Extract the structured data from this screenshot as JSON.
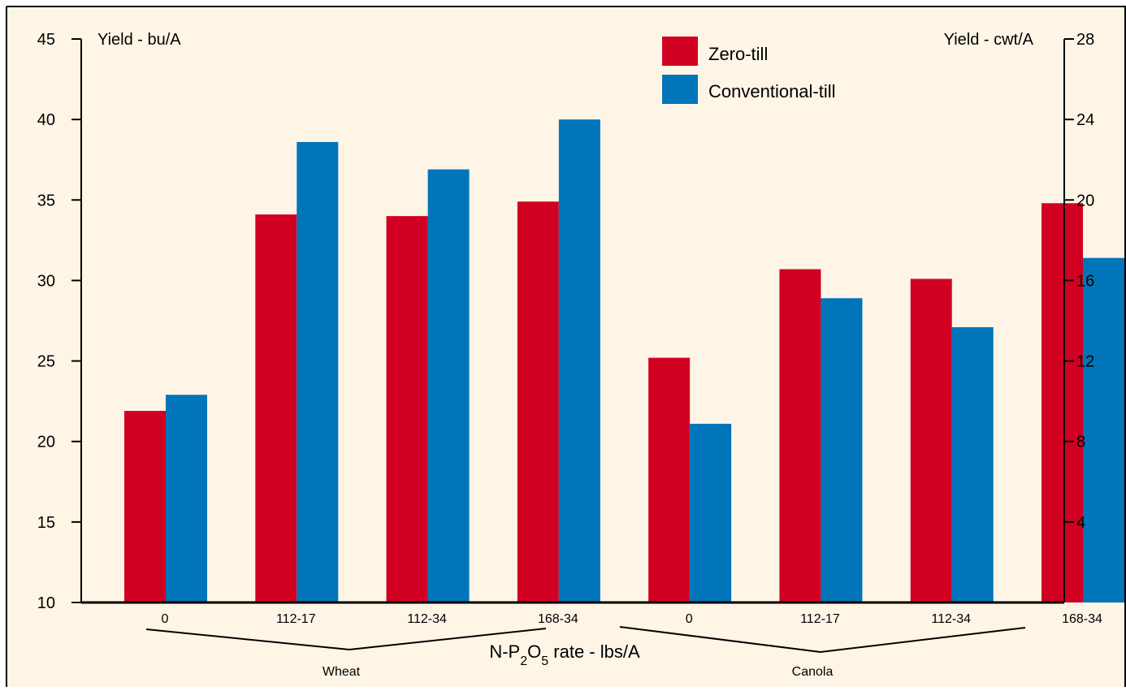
{
  "chart_data": {
    "type": "bar",
    "left_axis_label": "Yield - bu/A",
    "right_axis_label": "Yield - cwt/A",
    "xlabel_parts": [
      "N-P",
      "2",
      "O",
      "5",
      " rate - lbs/A"
    ],
    "ylim": [
      10,
      45
    ],
    "y_ticks": [
      10,
      15,
      20,
      25,
      30,
      35,
      40,
      45
    ],
    "right_ylim": [
      0,
      28
    ],
    "right_ticks": [
      4,
      8,
      12,
      16,
      20,
      24,
      28
    ],
    "categories": [
      "0",
      "112-17",
      "112-34",
      "168-34",
      "0",
      "112-17",
      "112-34",
      "168-34"
    ],
    "groups": [
      {
        "name": "Wheat",
        "categories": [
          "0",
          "112-17",
          "112-34",
          "168-34"
        ]
      },
      {
        "name": "Canola",
        "categories": [
          "0",
          "112-17",
          "112-34",
          "168-34"
        ]
      }
    ],
    "series": [
      {
        "name": "Zero-till",
        "color": "#d10023",
        "values": [
          21.9,
          34.1,
          34.0,
          34.9,
          25.2,
          30.7,
          30.1,
          34.8
        ]
      },
      {
        "name": "Conventional-till",
        "color": "#0075ba",
        "values": [
          22.9,
          38.6,
          36.9,
          40.0,
          21.1,
          28.9,
          27.1,
          31.4
        ]
      }
    ],
    "legend_position": "top-right",
    "background": "#fef5e6",
    "grid": false
  }
}
